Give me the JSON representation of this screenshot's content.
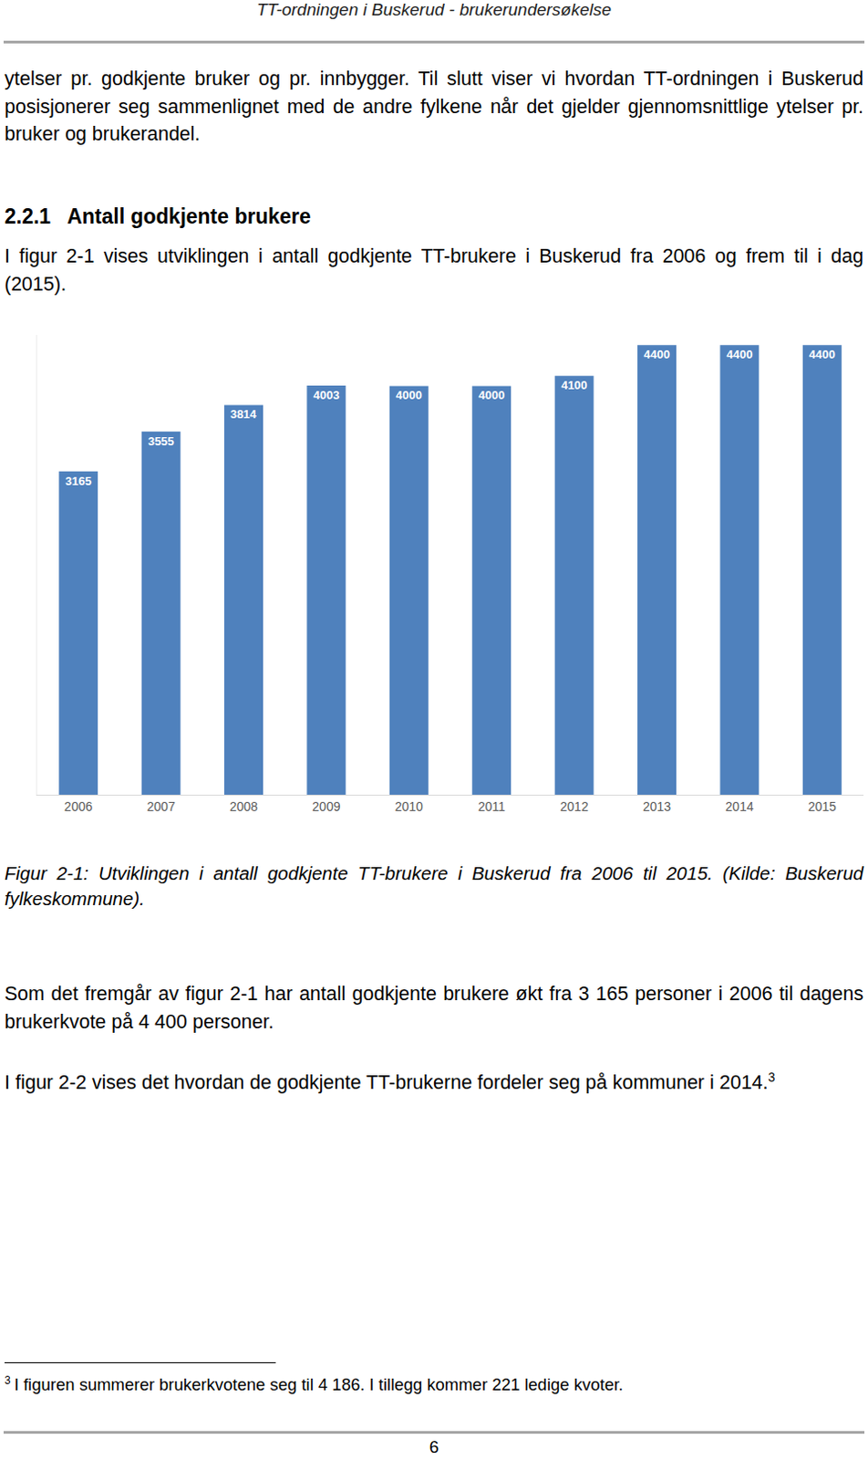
{
  "header": "TT-ordningen i Buskerud - brukerundersøkelse",
  "intro_paragraph": "ytelser pr. godkjente bruker og pr. innbygger. Til slutt viser vi hvordan TT-ordningen i Buskerud posisjonerer seg sammenlignet med de andre fylkene når det gjelder gjennomsnittlige ytelser pr. bruker og brukerandel.",
  "section": {
    "number": "2.2.1",
    "title": "Antall godkjente brukere"
  },
  "section_paragraph": "I figur 2-1 vises utviklingen i antall godkjente TT-brukere i Buskerud fra 2006 og frem til i dag (2015).",
  "chart_data": {
    "type": "bar",
    "categories": [
      "2006",
      "2007",
      "2008",
      "2009",
      "2010",
      "2011",
      "2012",
      "2013",
      "2014",
      "2015"
    ],
    "values": [
      3165,
      3555,
      3814,
      4003,
      4000,
      4000,
      4100,
      4400,
      4400,
      4400
    ],
    "color": "#4f81bd",
    "ylim": [
      0,
      4500
    ],
    "data_labels": true,
    "tick_labels": "x",
    "grid": false
  },
  "caption": "Figur 2-1: Utviklingen i antall godkjente TT-brukere i Buskerud fra 2006 til 2015. (Kilde: Buskerud fylkeskommune).",
  "paragraphs": [
    {
      "text": "Som det fremgår av figur 2-1 har antall godkjente brukere økt fra 3 165 personer i 2006 til dagens brukerkvote på 4 400 personer."
    },
    {
      "text": "I figur 2-2 vises det hvordan de godkjente TT-brukerne fordeler seg på kommuner i 2014.",
      "footnote_ref": "3"
    }
  ],
  "footnote": {
    "mark": "3",
    "text": "I figuren summerer brukerkvotene seg til 4 186. I tillegg kommer 221 ledige kvoter."
  },
  "page_number": "6"
}
